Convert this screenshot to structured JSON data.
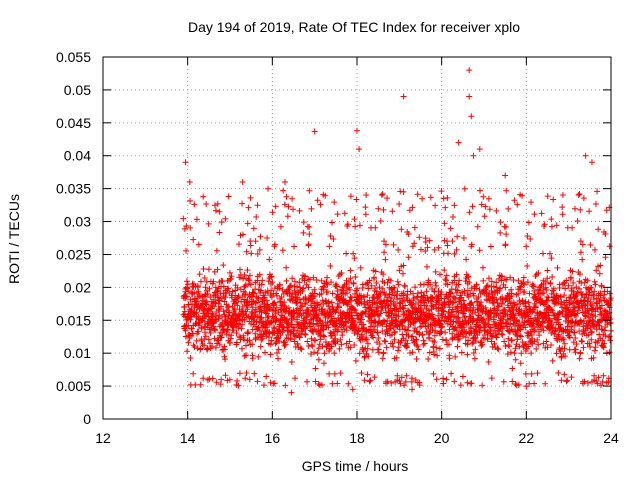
{
  "chart_data": {
    "type": "scatter",
    "title": "Day 194 of 2019, Rate Of TEC Index for receiver xplo",
    "xlabel": "GPS time / hours",
    "ylabel": "ROTI / TECUs",
    "xlim": [
      12,
      24
    ],
    "ylim": [
      0,
      0.055
    ],
    "xticks": [
      12,
      14,
      16,
      18,
      20,
      22,
      24
    ],
    "xtick_labels": [
      "12",
      "14",
      "16",
      "18",
      "20",
      "22",
      "24"
    ],
    "yticks": [
      0,
      0.005,
      0.01,
      0.015,
      0.02,
      0.025,
      0.03,
      0.035,
      0.04,
      0.045,
      0.05,
      0.055
    ],
    "ytick_labels": [
      "0",
      "0.005",
      "0.01",
      "0.015",
      "0.02",
      "0.025",
      "0.03",
      "0.035",
      "0.04",
      "0.045",
      "0.05",
      "0.055"
    ],
    "grid": true,
    "marker": "+",
    "series_color": "#ff0000",
    "series": [
      {
        "name": "ROTI",
        "x_range": [
          13.9,
          24.0
        ],
        "typical_range": [
          0.007,
          0.025
        ],
        "notable_points": [
          {
            "x": 13.95,
            "y": 0.039
          },
          {
            "x": 14.05,
            "y": 0.036
          },
          {
            "x": 15.3,
            "y": 0.036
          },
          {
            "x": 16.3,
            "y": 0.036
          },
          {
            "x": 17.0,
            "y": 0.0437
          },
          {
            "x": 18.0,
            "y": 0.0438
          },
          {
            "x": 18.05,
            "y": 0.041
          },
          {
            "x": 19.1,
            "y": 0.049
          },
          {
            "x": 19.1,
            "y": 0.0345
          },
          {
            "x": 20.4,
            "y": 0.042
          },
          {
            "x": 20.65,
            "y": 0.053
          },
          {
            "x": 20.65,
            "y": 0.049
          },
          {
            "x": 20.7,
            "y": 0.046
          },
          {
            "x": 20.75,
            "y": 0.04
          },
          {
            "x": 20.9,
            "y": 0.041
          },
          {
            "x": 21.5,
            "y": 0.037
          },
          {
            "x": 23.4,
            "y": 0.04
          },
          {
            "x": 23.55,
            "y": 0.039
          },
          {
            "x": 16.45,
            "y": 0.004
          },
          {
            "x": 17.9,
            "y": 0.0045
          },
          {
            "x": 19.3,
            "y": 0.0045
          },
          {
            "x": 22.0,
            "y": 0.005
          },
          {
            "x": 23.9,
            "y": 0.0055
          }
        ]
      }
    ]
  }
}
